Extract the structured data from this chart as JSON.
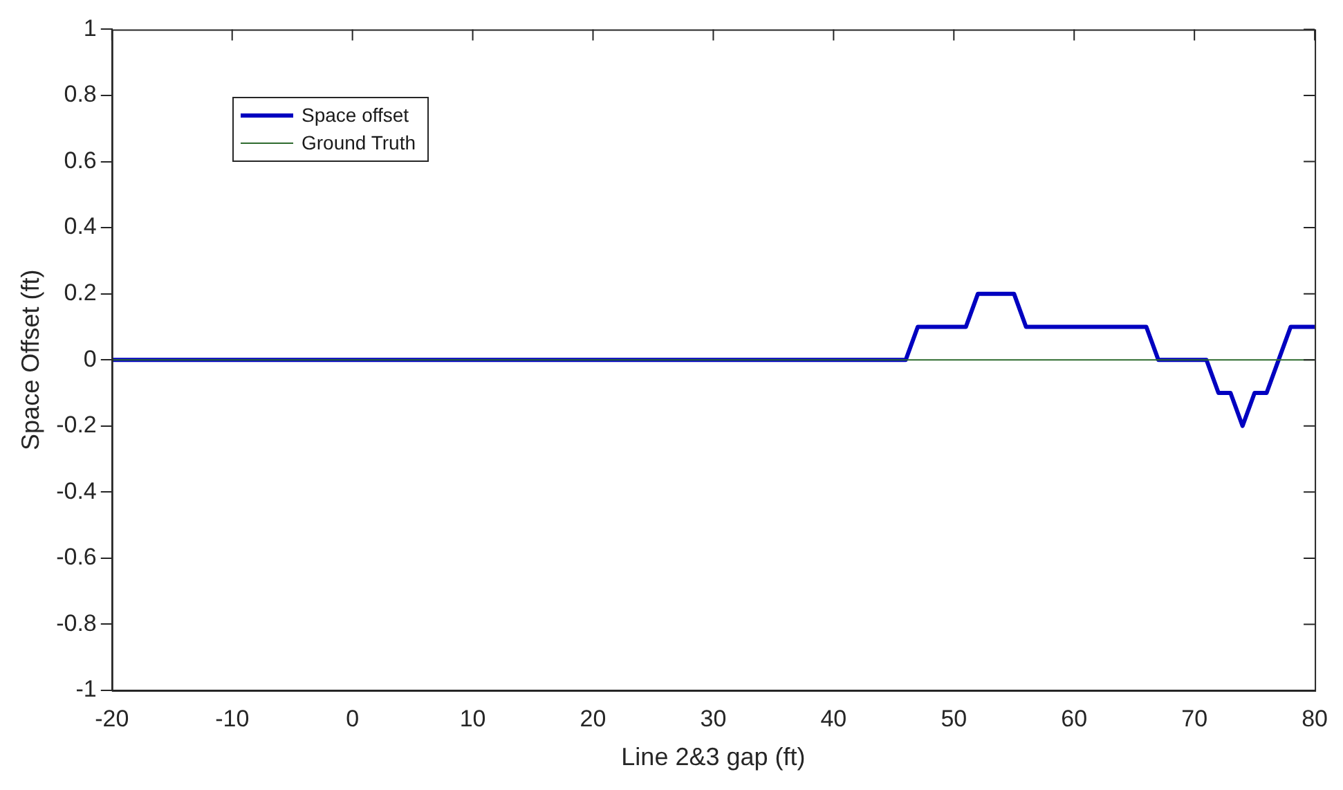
{
  "chart_data": {
    "type": "line",
    "xlabel": "Line 2&3 gap (ft)",
    "ylabel": "Space Offset (ft)",
    "xlim": [
      -20,
      80
    ],
    "xticks": [
      -20,
      -10,
      0,
      10,
      20,
      30,
      40,
      50,
      60,
      70,
      80
    ],
    "ylim": [
      -1,
      1
    ],
    "yticks": [
      -1,
      -0.8,
      -0.6,
      -0.4,
      -0.2,
      0,
      0.2,
      0.4,
      0.6,
      0.8,
      1
    ],
    "grid": false,
    "legend": "top left",
    "marker": "none",
    "line_style": "solid",
    "series": [
      {
        "name": "Space offset",
        "color": "#0000c0",
        "x": [
          -20,
          46,
          47,
          51,
          52,
          55,
          56,
          66,
          67,
          71,
          72,
          73,
          74,
          75,
          76,
          78,
          80
        ],
        "values": [
          0,
          0,
          0.1,
          0.1,
          0.2,
          0.2,
          0.1,
          0.1,
          0,
          0,
          -0.1,
          -0.1,
          -0.2,
          -0.1,
          -0.1,
          0.1,
          0.1
        ]
      },
      {
        "name": "Ground Truth",
        "color": "#2e6b2e",
        "x": [
          -20,
          80
        ],
        "values": [
          0,
          0
        ]
      }
    ]
  }
}
